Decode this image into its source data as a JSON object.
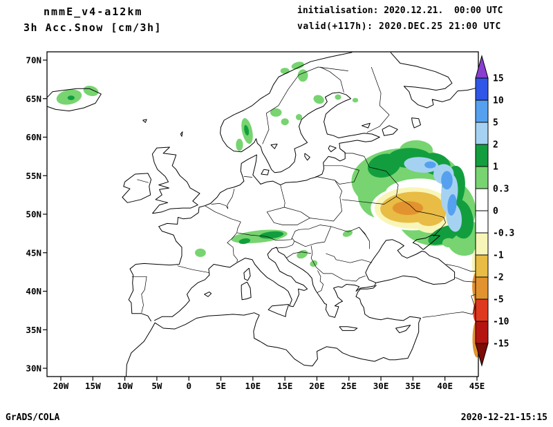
{
  "header": {
    "left_line1": "nmmE_v4-a12km",
    "left_line2": "3h Acc.Snow [cm/3h]",
    "right_line1": "initialisation: 2020.12.21.  00:00 UTC",
    "right_line2": "valid(+117h): 2020.DEC.25 21:00 UTC"
  },
  "footer": {
    "left": "GrADS/COLA",
    "right": "2020-12-21-15:15"
  },
  "chart_data": {
    "type": "heatmap",
    "title": "3h Acc.Snow [cm/3h]",
    "model_run": "nmmE_v4-a12km",
    "initialisation": "2020.12.21. 00:00 UTC",
    "valid": "2020.DEC.25 21:00 UTC (+117h)",
    "units": "cm/3h",
    "projection": "lat-lon, Europe",
    "grid": "off",
    "legend_position": "right-vertical-colorbar",
    "contour_levels_cm": [
      -15,
      -10,
      -5,
      -2,
      -1,
      -0.3,
      0,
      0.3,
      1,
      2,
      5,
      10,
      15
    ],
    "x_axis": {
      "ticks": [
        "20W",
        "15W",
        "10W",
        "5W",
        "0",
        "5E",
        "10E",
        "15E",
        "20E",
        "25E",
        "30E",
        "35E",
        "40E",
        "45E"
      ],
      "lon_values": [
        -20,
        -15,
        -10,
        -5,
        0,
        5,
        10,
        15,
        20,
        25,
        30,
        35,
        40,
        45
      ],
      "range_deg": [
        -22.2,
        45.2
      ]
    },
    "y_axis": {
      "ticks": [
        "30N",
        "35N",
        "40N",
        "45N",
        "50N",
        "55N",
        "60N",
        "65N",
        "70N"
      ],
      "lat_values": [
        30,
        35,
        40,
        45,
        50,
        55,
        60,
        65,
        70
      ],
      "range_deg": [
        28.9,
        71.1
      ]
    },
    "colorbar": {
      "boundary_labels": [
        "15",
        "10",
        "5",
        "2",
        "1",
        "0.3",
        "0",
        "-0.3",
        "-1",
        "-2",
        "-5",
        "-10",
        "-15"
      ],
      "segment_colors_top_to_bottom": [
        "#8a3ed0",
        "#3056e8",
        "#55a1ef",
        "#a6d2f2",
        "#129e3e",
        "#77d470",
        "#ffffff",
        "#ffffff",
        "#f8f5b8",
        "#e8bc45",
        "#e2932f",
        "#df3a20",
        "#b51510",
        "#7d0b06"
      ]
    },
    "palette": {
      "w": "#ffffff",
      "g1": "#77d470",
      "g2": "#129e3e",
      "b1": "#a6d2f2",
      "b2": "#55a1ef",
      "y1": "#f8f5b8",
      "y2": "#e8bc45",
      "o1": "#e2932f",
      "r1": "#df3a20"
    },
    "regions": [
      {
        "name": "russia-outer-lightgreen-1",
        "band": "0.3-1",
        "key": "g1",
        "lon": 34.0,
        "lat": 54.3,
        "rx": 8.6,
        "ry": 4.3,
        "rot": 0
      },
      {
        "name": "russia-outer-lightgreen-2",
        "band": "0.3-1",
        "key": "g1",
        "lon": 38.5,
        "lat": 50.5,
        "rx": 6.3,
        "ry": 4.6,
        "rot": 0
      },
      {
        "name": "russia-outer-lightgreen-3",
        "band": "0.3-1",
        "key": "g1",
        "lon": 29.8,
        "lat": 52.5,
        "rx": 3.4,
        "ry": 3.0,
        "rot": 0
      },
      {
        "name": "russia-outer-lightgreen-4",
        "band": "0.3-1",
        "key": "g1",
        "lon": 35.5,
        "lat": 58.3,
        "rx": 2.6,
        "ry": 1.3,
        "rot": 0
      },
      {
        "name": "russia-outer-lightgreen-5",
        "band": "0.3-1",
        "key": "g1",
        "lon": 43.0,
        "lat": 47.0,
        "rx": 2.8,
        "ry": 2.4,
        "rot": 0
      },
      {
        "name": "russia-inner-white-gap-1",
        "band": "-0.3-0.3",
        "key": "w",
        "lon": 35.3,
        "lat": 53.1,
        "rx": 4.6,
        "ry": 1.5,
        "rot": -5
      },
      {
        "name": "russia-inner-white-gap-2",
        "band": "-0.3-0.3",
        "key": "w",
        "lon": 35.0,
        "lat": 50.8,
        "rx": 6.6,
        "ry": 2.9,
        "rot": 0
      },
      {
        "name": "ukraine-paleyellow-1",
        "band": "-1--0.3",
        "key": "y1",
        "lon": 35.0,
        "lat": 50.8,
        "rx": 6.0,
        "ry": 2.7,
        "rot": 0
      },
      {
        "name": "ukraine-paleyellow-2",
        "band": "-1--0.3",
        "key": "y1",
        "lon": 38.3,
        "lat": 49.7,
        "rx": 3.4,
        "ry": 2.1,
        "rot": -15
      },
      {
        "name": "ukraine-orange-1",
        "band": "-2--1",
        "key": "y2",
        "lon": 34.8,
        "lat": 50.9,
        "rx": 4.9,
        "ry": 2.0,
        "rot": -4
      },
      {
        "name": "ukraine-orange-2",
        "band": "-2--1",
        "key": "y2",
        "lon": 37.8,
        "lat": 50.0,
        "rx": 2.4,
        "ry": 1.5,
        "rot": -15
      },
      {
        "name": "ukraine-orange-core",
        "band": "-5--2",
        "key": "o1",
        "lon": 34.2,
        "lat": 50.8,
        "rx": 2.4,
        "ry": 0.9,
        "rot": 0
      },
      {
        "name": "russia-green-arc-nw",
        "band": "1-2",
        "key": "g2",
        "lon": 30.5,
        "lat": 56.3,
        "rx": 2.6,
        "ry": 1.5,
        "rot": -15
      },
      {
        "name": "russia-green-arc-n",
        "band": "1-2",
        "key": "g2",
        "lon": 34.5,
        "lat": 57.3,
        "rx": 3.4,
        "ry": 1.3,
        "rot": 0
      },
      {
        "name": "russia-green-arc-ne",
        "band": "1-2",
        "key": "g2",
        "lon": 38.5,
        "lat": 56.5,
        "rx": 2.4,
        "ry": 1.4,
        "rot": 15
      },
      {
        "name": "russia-green-arc-e",
        "band": "1-2",
        "key": "g2",
        "lon": 41.3,
        "lat": 53.3,
        "rx": 1.8,
        "ry": 3.0,
        "rot": 8
      },
      {
        "name": "russia-green-arc-se",
        "band": "1-2",
        "key": "g2",
        "lon": 42.5,
        "lat": 49.4,
        "rx": 1.9,
        "ry": 2.6,
        "rot": -12
      },
      {
        "name": "russia-green-arc-s",
        "band": "1-2",
        "key": "g2",
        "lon": 39.8,
        "lat": 47.3,
        "rx": 2.6,
        "ry": 1.0,
        "rot": -25
      },
      {
        "name": "russia-lightblue-n",
        "band": "2-5",
        "key": "b1",
        "lon": 36.3,
        "lat": 56.4,
        "rx": 2.7,
        "ry": 1.0,
        "rot": 5
      },
      {
        "name": "russia-lightblue-ne",
        "band": "2-5",
        "key": "b1",
        "lon": 39.8,
        "lat": 55.2,
        "rx": 1.6,
        "ry": 1.3,
        "rot": 0
      },
      {
        "name": "russia-lightblue-e",
        "band": "2-5",
        "key": "b1",
        "lon": 40.7,
        "lat": 52.7,
        "rx": 1.3,
        "ry": 2.5,
        "rot": 6
      },
      {
        "name": "russia-lightblue-se",
        "band": "2-5",
        "key": "b1",
        "lon": 41.4,
        "lat": 49.6,
        "rx": 1.2,
        "ry": 1.9,
        "rot": -8
      },
      {
        "name": "russia-blue-1",
        "band": "5-10",
        "key": "b2",
        "lon": 40.3,
        "lat": 54.4,
        "rx": 0.9,
        "ry": 1.2,
        "rot": 0
      },
      {
        "name": "russia-blue-2",
        "band": "5-10",
        "key": "b2",
        "lon": 41.1,
        "lat": 51.2,
        "rx": 0.7,
        "ry": 1.4,
        "rot": 5
      },
      {
        "name": "russia-blue-3",
        "band": "5-10",
        "key": "b2",
        "lon": 37.7,
        "lat": 56.4,
        "rx": 0.9,
        "ry": 0.45,
        "rot": 0
      },
      {
        "name": "iceland-green-1",
        "band": "0.3-1",
        "key": "g1",
        "lon": -18.7,
        "lat": 65.2,
        "rx": 2.0,
        "ry": 0.95,
        "rot": -12
      },
      {
        "name": "iceland-green-2",
        "band": "0.3-1",
        "key": "g1",
        "lon": -15.3,
        "lat": 66.0,
        "rx": 1.2,
        "ry": 0.65,
        "rot": 15
      },
      {
        "name": "iceland-green-core",
        "band": "1-2",
        "key": "g2",
        "lon": -18.4,
        "lat": 65.1,
        "rx": 0.55,
        "ry": 0.3,
        "rot": 0
      },
      {
        "name": "norway-north-green-1",
        "band": "0.3-1",
        "key": "g1",
        "lon": 17.0,
        "lat": 69.3,
        "rx": 1.0,
        "ry": 0.45,
        "rot": -15
      },
      {
        "name": "norway-north-green-2",
        "band": "0.3-1",
        "key": "g1",
        "lon": 15.0,
        "lat": 68.6,
        "rx": 0.7,
        "ry": 0.4,
        "rot": 0
      },
      {
        "name": "norway-north-green-3",
        "band": "0.3-1",
        "key": "g1",
        "lon": 17.8,
        "lat": 68.0,
        "rx": 0.8,
        "ry": 0.8,
        "rot": 0
      },
      {
        "name": "norway-south-green",
        "band": "0.3-1",
        "key": "g1",
        "lon": 9.1,
        "lat": 60.8,
        "rx": 0.8,
        "ry": 1.7,
        "rot": -12
      },
      {
        "name": "norway-south-green-core",
        "band": "1-2",
        "key": "g2",
        "lon": 9.0,
        "lat": 60.9,
        "rx": 0.35,
        "ry": 0.7,
        "rot": -12
      },
      {
        "name": "norway-south-green-2",
        "band": "0.3-1",
        "key": "g1",
        "lon": 7.9,
        "lat": 59.0,
        "rx": 0.55,
        "ry": 0.8,
        "rot": 0
      },
      {
        "name": "sweden-green-1",
        "band": "0.3-1",
        "key": "g1",
        "lon": 13.6,
        "lat": 63.2,
        "rx": 0.9,
        "ry": 0.55,
        "rot": 0
      },
      {
        "name": "sweden-green-2",
        "band": "0.3-1",
        "key": "g1",
        "lon": 15.0,
        "lat": 62.0,
        "rx": 0.6,
        "ry": 0.45,
        "rot": 0
      },
      {
        "name": "sweden-green-3",
        "band": "0.3-1",
        "key": "g1",
        "lon": 17.2,
        "lat": 62.6,
        "rx": 0.5,
        "ry": 0.4,
        "rot": 0
      },
      {
        "name": "sweden-green-4",
        "band": "0.3-1",
        "key": "g1",
        "lon": 20.3,
        "lat": 64.9,
        "rx": 0.85,
        "ry": 0.55,
        "rot": 20
      },
      {
        "name": "finland-green-1",
        "band": "0.3-1",
        "key": "g1",
        "lon": 23.3,
        "lat": 65.2,
        "rx": 0.5,
        "ry": 0.35,
        "rot": 0
      },
      {
        "name": "finland-green-2",
        "band": "0.3-1",
        "key": "g1",
        "lon": 26.0,
        "lat": 64.8,
        "rx": 0.45,
        "ry": 0.3,
        "rot": 0
      },
      {
        "name": "alps-green",
        "band": "0.3-1",
        "key": "g1",
        "lon": 11.0,
        "lat": 47.1,
        "rx": 4.4,
        "ry": 0.8,
        "rot": -6
      },
      {
        "name": "alps-green-core-e",
        "band": "1-2",
        "key": "g2",
        "lon": 12.9,
        "lat": 47.3,
        "rx": 1.9,
        "ry": 0.45,
        "rot": -6
      },
      {
        "name": "alps-green-core-w",
        "band": "1-2",
        "key": "g2",
        "lon": 8.7,
        "lat": 46.5,
        "rx": 0.9,
        "ry": 0.35,
        "rot": -10
      },
      {
        "name": "massif-central-green",
        "band": "0.3-1",
        "key": "g1",
        "lon": 1.8,
        "lat": 45.0,
        "rx": 0.85,
        "ry": 0.55,
        "rot": 0
      },
      {
        "name": "dinarides-green-1",
        "band": "0.3-1",
        "key": "g1",
        "lon": 17.7,
        "lat": 44.8,
        "rx": 0.9,
        "ry": 0.5,
        "rot": -25
      },
      {
        "name": "dinarides-green-2",
        "band": "0.3-1",
        "key": "g1",
        "lon": 19.5,
        "lat": 43.6,
        "rx": 0.6,
        "ry": 0.4,
        "rot": -25
      },
      {
        "name": "carpathians-green",
        "band": "0.3-1",
        "key": "g1",
        "lon": 24.8,
        "lat": 47.5,
        "rx": 0.8,
        "ry": 0.4,
        "rot": -20
      },
      {
        "name": "kuban-green",
        "band": "0.3-1",
        "key": "g1",
        "lon": 40.6,
        "lat": 46.3,
        "rx": 1.0,
        "ry": 0.6,
        "rot": 0
      },
      {
        "name": "caucasus-edge-green",
        "band": "0.3-1",
        "key": "g1",
        "lon": 45.0,
        "lat": 46.8,
        "rx": 0.9,
        "ry": 1.6,
        "rot": 0
      },
      {
        "name": "caucasus-edge-paleyellow",
        "band": "-1--0.3",
        "key": "y1",
        "lon": 45.0,
        "lat": 43.6,
        "rx": 0.8,
        "ry": 2.0,
        "rot": 0
      },
      {
        "name": "caucasus-edge-yellow",
        "band": "-2--1",
        "key": "y2",
        "lon": 45.0,
        "lat": 39.0,
        "rx": 0.5,
        "ry": 1.0,
        "rot": 0
      },
      {
        "name": "caucasus-edge-orange-1",
        "band": "-5--2",
        "key": "o1",
        "lon": 45.0,
        "lat": 40.6,
        "rx": 0.75,
        "ry": 1.9,
        "rot": 0
      },
      {
        "name": "caucasus-edge-red",
        "band": "-10--5",
        "key": "r1",
        "lon": 45.0,
        "lat": 37.3,
        "rx": 0.6,
        "ry": 1.4,
        "rot": 0
      },
      {
        "name": "caucasus-edge-orange-2",
        "band": "-5--2",
        "key": "o1",
        "lon": 45.0,
        "lat": 33.8,
        "rx": 0.7,
        "ry": 2.4,
        "rot": 0
      }
    ]
  }
}
